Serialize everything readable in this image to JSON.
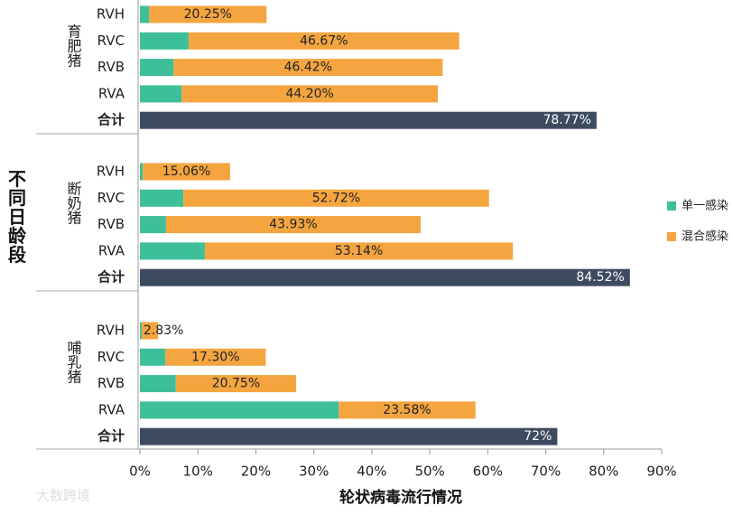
{
  "chart_data": {
    "type": "bar",
    "horizontal": true,
    "stacked": true,
    "ylabel": "不同日龄段",
    "xlabel": "轮状病毒流行情况",
    "groups": [
      "育肥猪",
      "断奶猪",
      "哺乳猪"
    ],
    "categories": [
      [
        "RVH",
        "RVC",
        "RVB",
        "RVA",
        "合计"
      ],
      [
        "RVH",
        "RVC",
        "RVB",
        "RVA",
        "合计"
      ],
      [
        "RVH",
        "RVC",
        "RVB",
        "RVA",
        "合计"
      ]
    ],
    "series": [
      {
        "name": "单一感染",
        "color": "#3dbf9a",
        "values": [
          [
            1.6,
            8.4,
            5.8,
            7.2,
            null
          ],
          [
            0.5,
            7.5,
            4.5,
            11.2,
            null
          ],
          [
            0.3,
            4.4,
            6.2,
            34.3,
            null
          ]
        ]
      },
      {
        "name": "混合感染",
        "color": "#f4a540",
        "values": [
          [
            20.25,
            46.67,
            46.42,
            44.2,
            null
          ],
          [
            15.06,
            52.72,
            43.93,
            53.14,
            null
          ],
          [
            2.83,
            17.3,
            20.75,
            23.58,
            null
          ]
        ],
        "value_labels": [
          [
            "20.25%",
            "46.67%",
            "46.42%",
            "44.20%",
            null
          ],
          [
            "15.06%",
            "52.72%",
            "43.93%",
            "53.14%",
            null
          ],
          [
            "2.83%",
            "17.30%",
            "20.75%",
            "23.58%",
            null
          ]
        ]
      }
    ],
    "totals": {
      "color": "#3d4b60",
      "values": [
        78.77,
        84.52,
        72
      ],
      "value_labels": [
        "78.77%",
        "84.52%",
        "72%"
      ]
    },
    "xlim": [
      0,
      90
    ],
    "xticks": [
      {
        "value": 0,
        "label": "0%"
      },
      {
        "value": 10,
        "label": "10%"
      },
      {
        "value": 20,
        "label": "20%"
      },
      {
        "value": 30,
        "label": "30%"
      },
      {
        "value": 40,
        "label": "40%"
      },
      {
        "value": 50,
        "label": "50%"
      },
      {
        "value": 60,
        "label": "60%"
      },
      {
        "value": 70,
        "label": "70%"
      },
      {
        "value": 80,
        "label": "80%"
      },
      {
        "value": 90,
        "label": "90%"
      }
    ],
    "legend": "right",
    "watermark": "大数跨境"
  }
}
